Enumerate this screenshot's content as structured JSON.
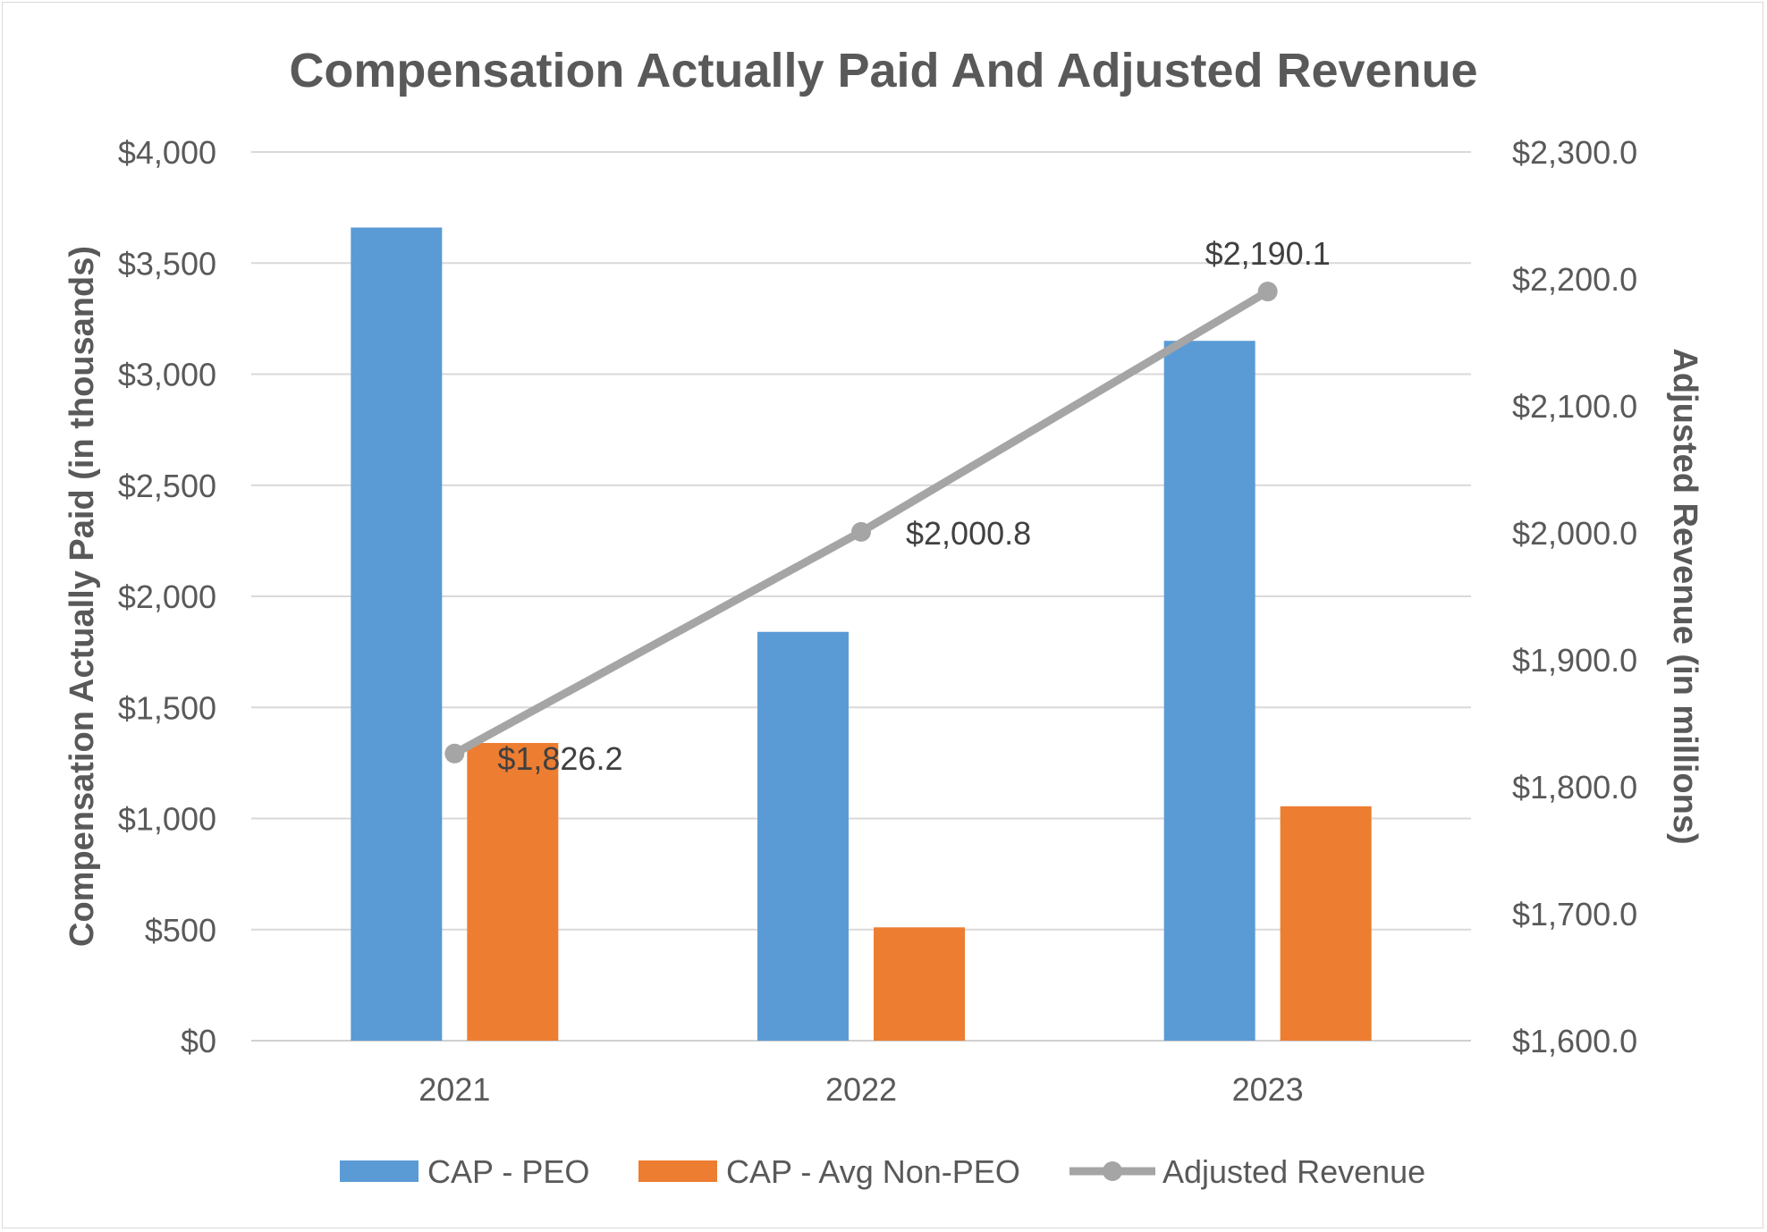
{
  "chart_data": {
    "type": "bar",
    "title": "Compensation Actually Paid And Adjusted Revenue",
    "categories": [
      "2021",
      "2022",
      "2023"
    ],
    "ylabel": "Compensation Actually Paid (in thousands)",
    "y2label": "Adjusted Revenue (in millions)",
    "ylim": [
      0,
      4000
    ],
    "y2lim": [
      1600,
      2300
    ],
    "yticks": [
      "$0",
      "$500",
      "$1,000",
      "$1,500",
      "$2,000",
      "$2,500",
      "$3,000",
      "$3,500",
      "$4,000"
    ],
    "y2ticks": [
      "$1,600.0",
      "$1,700.0",
      "$1,800.0",
      "$1,900.0",
      "$2,000.0",
      "$2,100.0",
      "$2,200.0",
      "$2,300.0"
    ],
    "grid": true,
    "legend_position": "bottom",
    "series": [
      {
        "name": "CAP - PEO",
        "kind": "bar",
        "axis": "left",
        "color": "#5b9bd5",
        "values": [
          3660,
          1840,
          3150
        ]
      },
      {
        "name": "CAP - Avg Non-PEO",
        "kind": "bar",
        "axis": "left",
        "color": "#ed7d31",
        "values": [
          1340,
          510,
          1055
        ]
      },
      {
        "name": "Adjusted Revenue",
        "kind": "line",
        "axis": "right",
        "color": "#a5a5a5",
        "values": [
          1826.2,
          2000.8,
          2190.1
        ],
        "labels": [
          "$1,826.2",
          "$2,000.8",
          "$2,190.1"
        ]
      }
    ]
  }
}
